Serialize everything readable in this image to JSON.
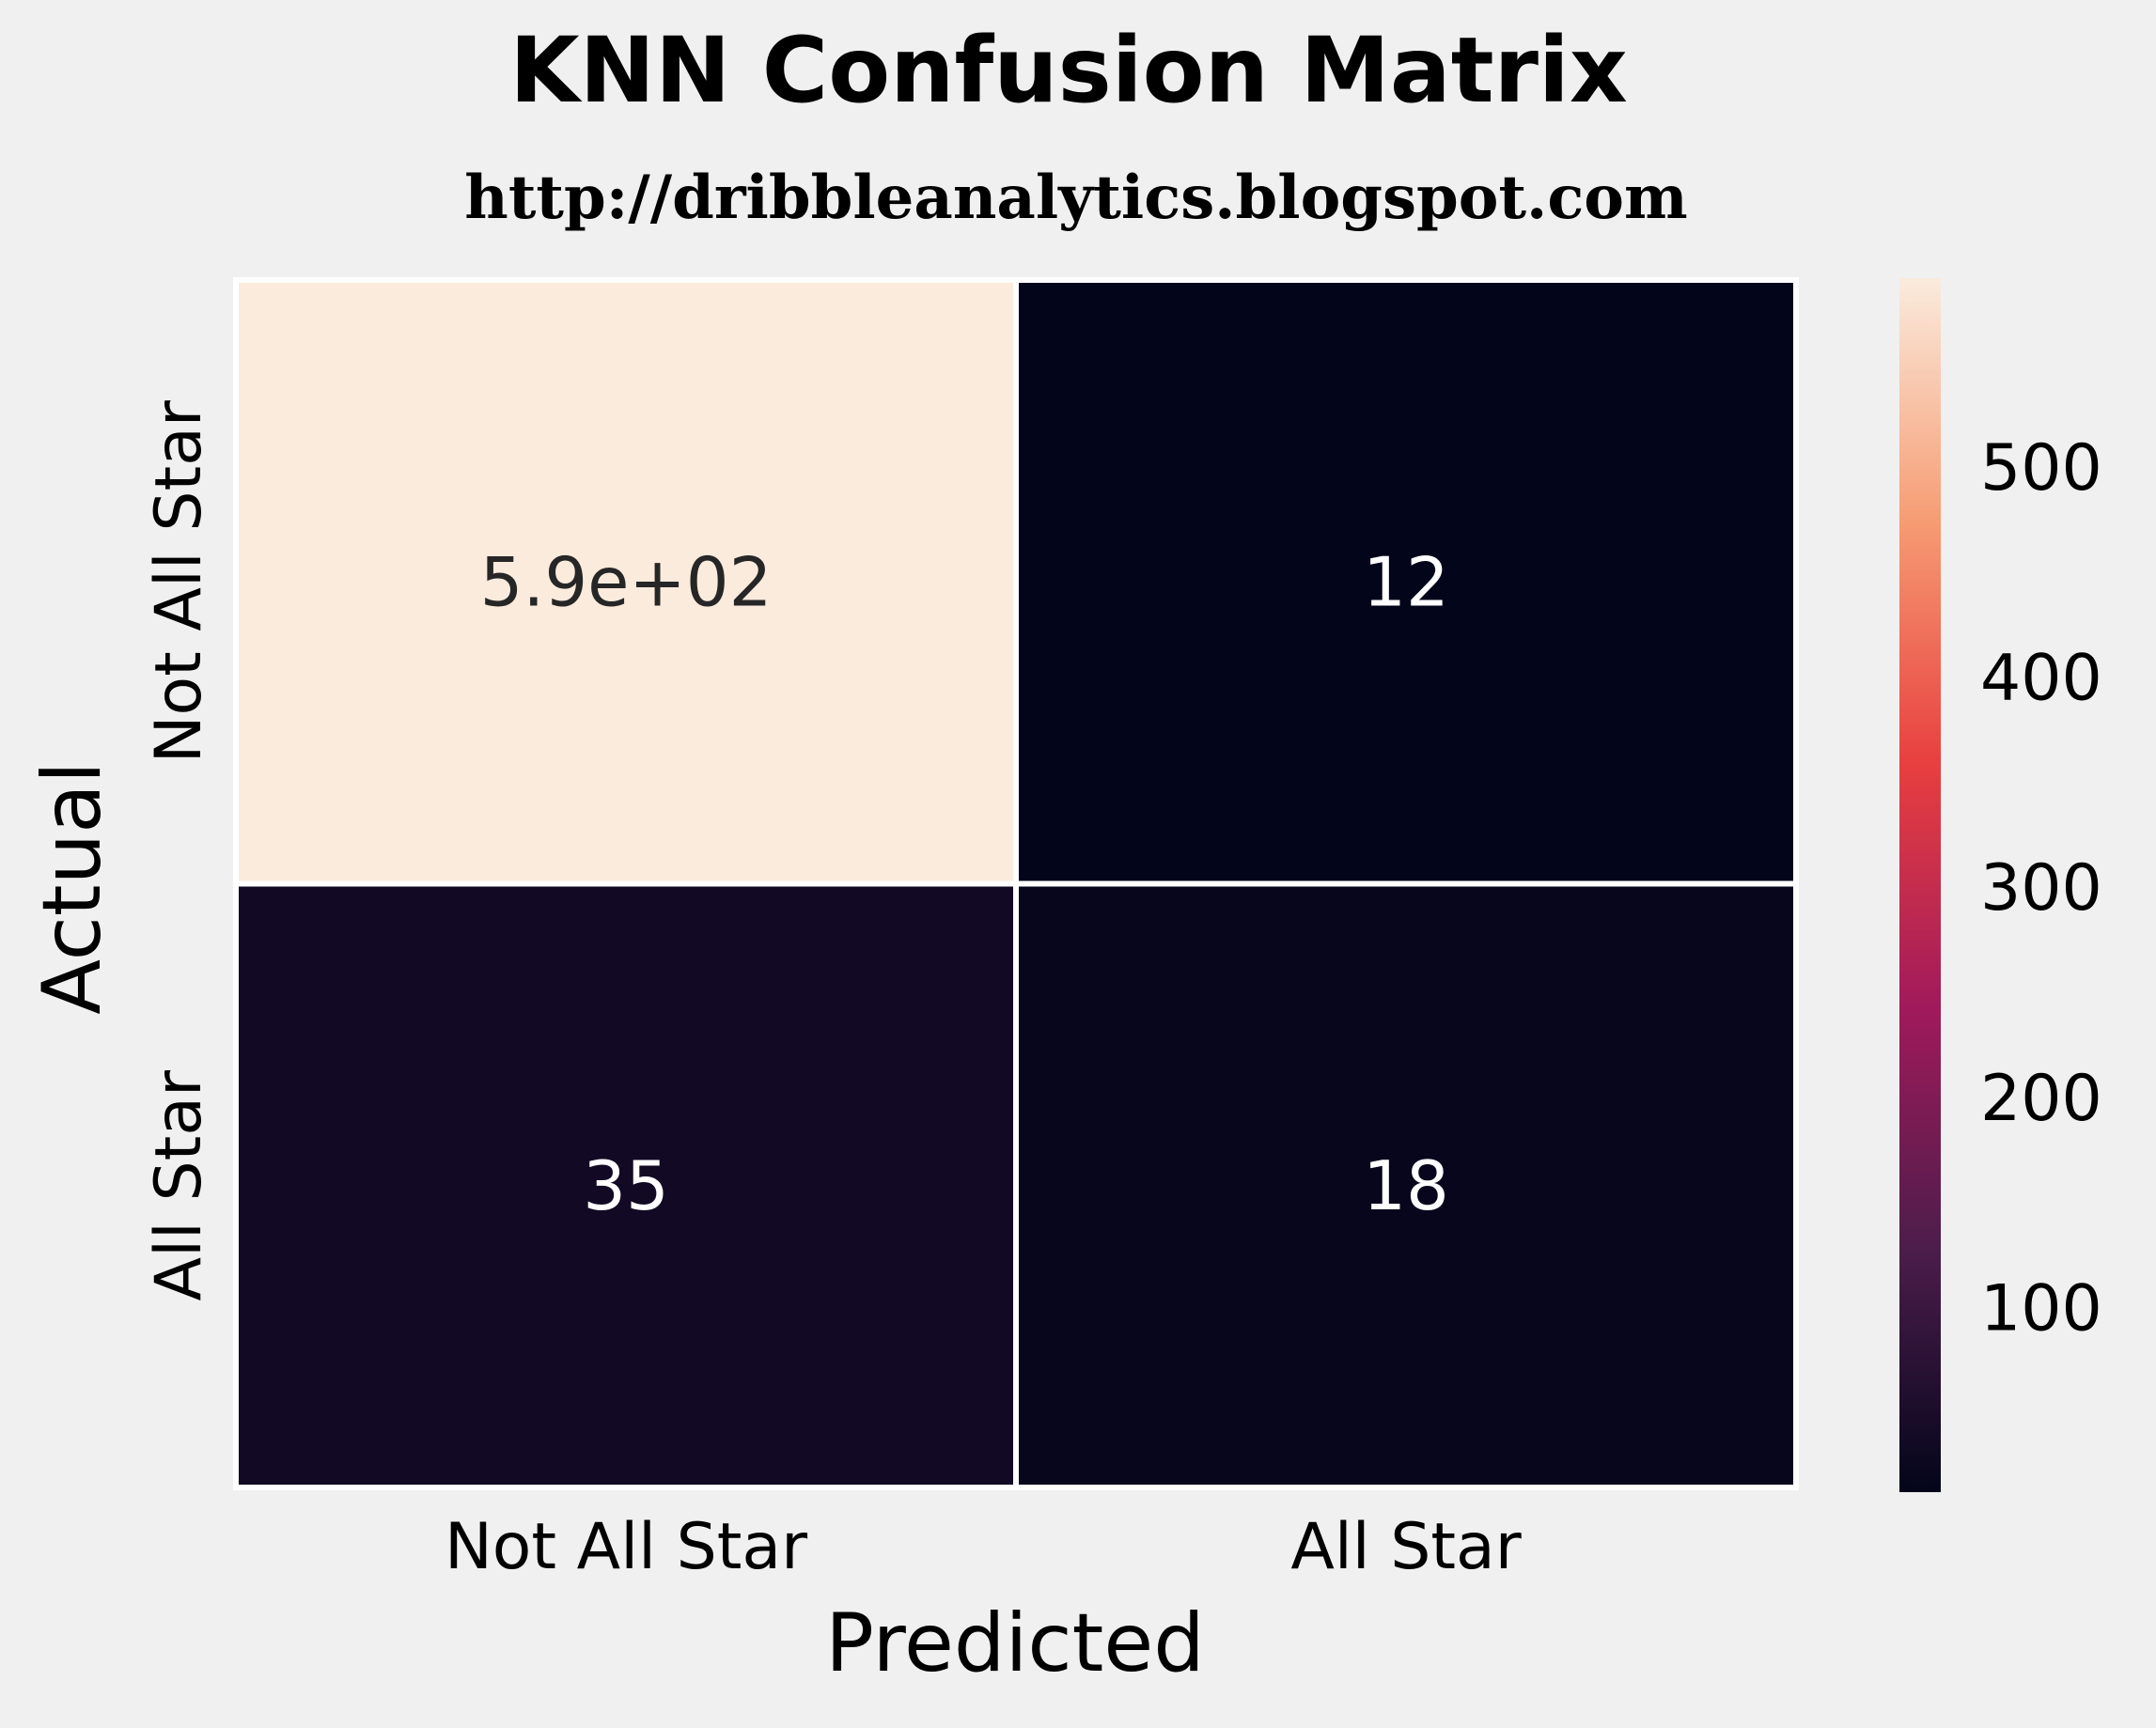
{
  "chart_data": {
    "type": "heatmap",
    "title": "KNN Confusion Matrix",
    "subtitle": "http://dribbleanalytics.blogspot.com",
    "xlabel": "Predicted",
    "ylabel": "Actual",
    "x_categories": [
      "Not All Star",
      "All Star"
    ],
    "y_categories": [
      "Not All Star",
      "All Star"
    ],
    "values": [
      [
        590,
        12
      ],
      [
        35,
        18
      ]
    ],
    "annotations": [
      [
        "5.9e+02",
        "12"
      ],
      [
        "35",
        "18"
      ]
    ],
    "colorbar": {
      "range": [
        12,
        590
      ],
      "ticks": [
        "100",
        "200",
        "300",
        "400",
        "500"
      ],
      "tick_values": [
        100,
        200,
        300,
        400,
        500
      ],
      "colormap": "rocket",
      "colors": [
        "#03051a",
        "#4c1d4b",
        "#a11a5b",
        "#e83f3f",
        "#f69c73",
        "#faebdd"
      ]
    },
    "cell_border_color": "#ffffff",
    "background_color": "#f0f0f0",
    "grid": false
  }
}
